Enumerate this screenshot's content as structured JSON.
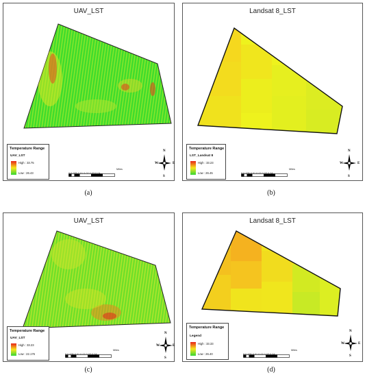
{
  "panels": [
    {
      "title": "UAV_LST",
      "legend_title": "Temperature Range",
      "legend_layer": "UAV_LST",
      "high_label": "High : 33.75",
      "low_label": "Low : 26.43",
      "scale_ticks": "0  0.005 0.01      0.02      0.03      0.04",
      "scale_units": "Miles",
      "caption": "(a)",
      "colors": {
        "high": "#e8231a",
        "mid": "#f6e61c",
        "low": "#35d635"
      }
    },
    {
      "title": "Landsat 8_LST",
      "legend_title": "Temperature Range",
      "legend_layer": "LST_Landsat 8",
      "high_label": "High : 33.23",
      "low_label": "Low : 26.45",
      "scale_ticks": "0  0.005 0.01      0.02      0.03      0.04",
      "scale_units": "Miles",
      "caption": "(b)",
      "colors": {
        "high": "#e8231a",
        "mid": "#f6e61c",
        "low": "#35d635"
      }
    },
    {
      "title": "UAV_LST",
      "legend_title": "Temperature Range",
      "legend_layer": "UAV_LST",
      "high_label": "High : 33.23",
      "low_label": "Low : 22.176",
      "scale_ticks": "0  0.005 0.01      0.02      0.03      0.04",
      "scale_units": "Miles",
      "caption": "(c)",
      "colors": {
        "high": "#e8231a",
        "mid": "#f6e61c",
        "low": "#35d635"
      }
    },
    {
      "title": "Landsat 8_LST",
      "legend_title": "Temperature Range",
      "legend_layer": "Legend",
      "high_label": "High : 33.33",
      "low_label": "Low : 26.40",
      "scale_ticks": "0  0.005 0.01      0.02      0.03      0.04",
      "scale_units": "Miles",
      "caption": "(d)",
      "colors": {
        "high": "#e8231a",
        "mid": "#f6e61c",
        "low": "#35d635"
      }
    }
  ],
  "compass": {
    "n": "N",
    "s": "S",
    "e": "E",
    "w": "W"
  }
}
